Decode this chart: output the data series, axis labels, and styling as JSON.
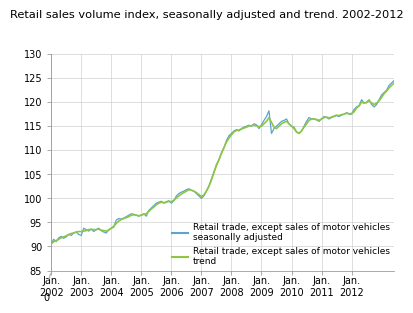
{
  "title": "Retail sales volume index, seasonally adjusted and trend. 2002-2012",
  "title_fontsize": 8.2,
  "ylim": [
    85,
    130
  ],
  "yticks": [
    85,
    90,
    95,
    100,
    105,
    110,
    115,
    120,
    125,
    130
  ],
  "ytick_labels": [
    "85",
    "90",
    "95",
    "100",
    "105",
    "110",
    "115",
    "120",
    "125",
    "130"
  ],
  "xtick_labels": [
    "Jan.\n2002",
    "Jan.\n2003",
    "Jan.\n2004",
    "Jan.\n2005",
    "Jan.\n2006",
    "Jan.\n2007",
    "Jan.\n2008",
    "Jan.\n2009",
    "Jan.\n2010",
    "Jan.\n2011",
    "Jan.\n2012"
  ],
  "color_sa": "#5ba3d0",
  "color_trend": "#8dc63f",
  "legend_labels": [
    "Retail trade, except sales of motor vehicles\nseasonally adjusted",
    "Retail trade, except sales of motor vehicles\ntrend"
  ],
  "legend_fontsize": 6.5,
  "tick_fontsize": 7,
  "background_color": "#ffffff",
  "grid_color": "#d0d0d0",
  "sa_values": [
    90.5,
    91.5,
    91.0,
    91.8,
    92.1,
    91.7,
    92.0,
    92.5,
    92.3,
    92.8,
    93.0,
    92.5,
    92.3,
    93.8,
    93.5,
    93.2,
    93.6,
    93.1,
    93.5,
    93.8,
    93.3,
    93.0,
    92.8,
    93.5,
    93.8,
    94.0,
    95.5,
    95.8,
    95.7,
    95.9,
    96.2,
    96.5,
    96.8,
    96.7,
    96.5,
    96.3,
    96.5,
    96.8,
    96.3,
    97.5,
    98.0,
    98.5,
    99.0,
    99.2,
    99.4,
    99.0,
    99.3,
    99.5,
    99.0,
    99.5,
    100.5,
    101.0,
    101.3,
    101.5,
    101.8,
    102.0,
    101.7,
    101.5,
    101.0,
    100.5,
    100.0,
    100.5,
    101.5,
    102.5,
    104.0,
    105.5,
    107.0,
    108.0,
    109.5,
    110.5,
    112.0,
    113.0,
    113.5,
    114.0,
    114.3,
    114.0,
    114.5,
    114.8,
    115.0,
    115.2,
    115.0,
    115.5,
    115.3,
    114.5,
    115.3,
    116.2,
    117.0,
    118.2,
    113.5,
    114.5,
    115.0,
    115.5,
    116.0,
    116.2,
    116.5,
    115.5,
    115.0,
    114.8,
    113.8,
    113.5,
    114.0,
    115.0,
    116.0,
    116.8,
    116.5,
    116.5,
    116.3,
    116.0,
    116.5,
    117.0,
    116.8,
    116.5,
    116.8,
    117.0,
    117.2,
    117.0,
    117.3,
    117.5,
    117.8,
    117.5,
    117.5,
    118.5,
    119.0,
    119.3,
    120.5,
    119.8,
    120.0,
    120.5,
    119.5,
    119.0,
    119.5,
    120.5,
    121.5,
    122.0,
    122.5,
    123.5,
    124.0,
    124.5
  ],
  "trend_values": [
    90.5,
    91.0,
    91.2,
    91.5,
    91.8,
    92.0,
    92.2,
    92.5,
    92.7,
    92.8,
    93.0,
    93.1,
    93.1,
    93.2,
    93.3,
    93.5,
    93.6,
    93.5,
    93.5,
    93.6,
    93.4,
    93.3,
    93.2,
    93.4,
    93.8,
    94.2,
    94.8,
    95.3,
    95.6,
    95.8,
    96.0,
    96.2,
    96.5,
    96.6,
    96.5,
    96.4,
    96.5,
    96.7,
    96.8,
    97.3,
    97.8,
    98.2,
    98.7,
    99.0,
    99.2,
    99.1,
    99.2,
    99.4,
    99.3,
    99.6,
    100.1,
    100.5,
    100.9,
    101.2,
    101.5,
    101.8,
    101.7,
    101.5,
    101.2,
    100.8,
    100.4,
    100.7,
    101.5,
    102.5,
    103.8,
    105.3,
    106.8,
    108.0,
    109.3,
    110.5,
    111.7,
    112.5,
    113.2,
    113.8,
    114.1,
    114.2,
    114.4,
    114.6,
    114.8,
    115.0,
    115.1,
    115.2,
    115.1,
    114.9,
    115.0,
    115.5,
    116.0,
    116.8,
    115.8,
    114.8,
    114.5,
    115.0,
    115.5,
    115.8,
    116.0,
    115.5,
    115.0,
    114.5,
    113.8,
    113.5,
    114.0,
    114.8,
    115.5,
    116.2,
    116.5,
    116.5,
    116.4,
    116.2,
    116.5,
    116.8,
    116.9,
    116.7,
    116.9,
    117.1,
    117.3,
    117.2,
    117.4,
    117.5,
    117.7,
    117.6,
    117.6,
    118.0,
    118.8,
    119.2,
    120.0,
    119.8,
    119.9,
    120.3,
    119.8,
    119.5,
    119.8,
    120.3,
    121.0,
    121.8,
    122.3,
    123.0,
    123.5,
    124.0
  ]
}
